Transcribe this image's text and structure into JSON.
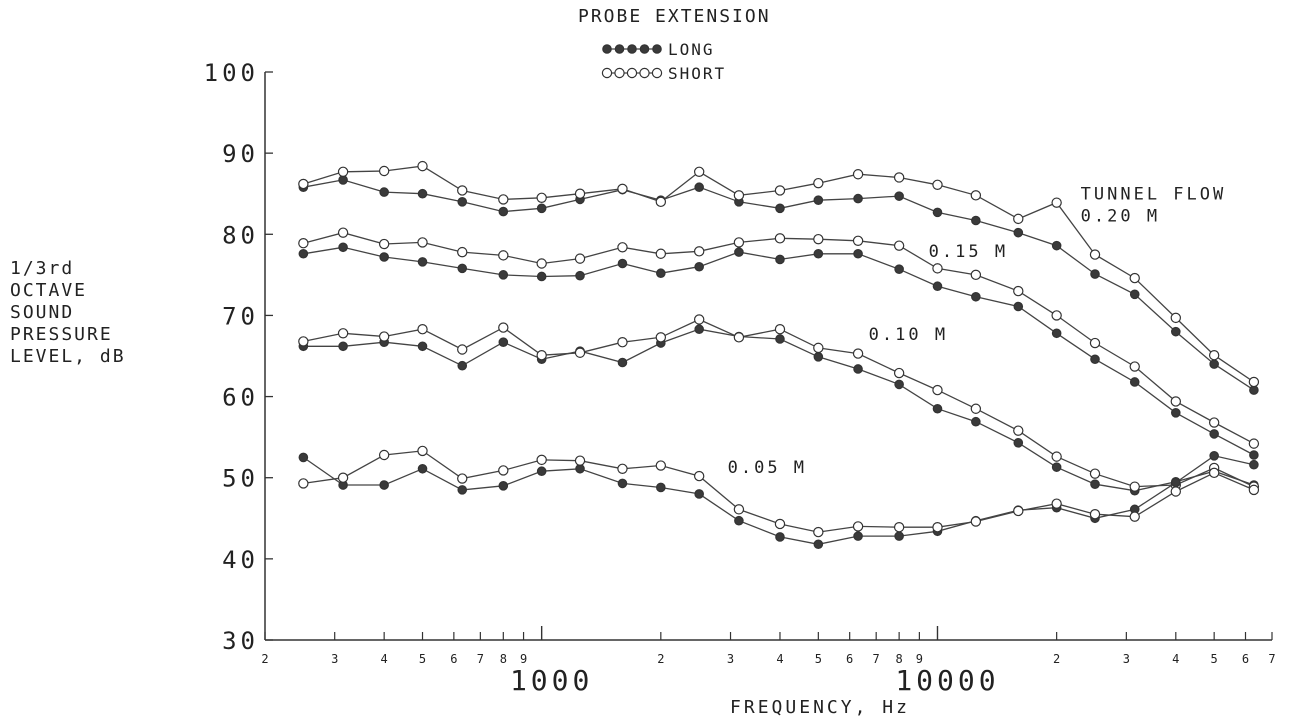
{
  "chart_data": {
    "type": "line",
    "title": "PROBE EXTENSION",
    "xlabel": "FREQUENCY, Hz",
    "ylabel_lines": [
      "1/3rd",
      "OCTAVE",
      "SOUND",
      "PRESSURE",
      "LEVEL, dB"
    ],
    "x_scale": "log",
    "xlim": [
      200,
      70000
    ],
    "ylim": [
      30,
      100
    ],
    "y_ticks": [
      30,
      40,
      50,
      60,
      70,
      80,
      90,
      100
    ],
    "x_major_ticks": [
      {
        "value": 1000,
        "label": "1000"
      },
      {
        "value": 10000,
        "label": "10000"
      }
    ],
    "x_minor_ticks": [
      {
        "value": 200,
        "label": "2"
      },
      {
        "value": 300,
        "label": "3"
      },
      {
        "value": 400,
        "label": "4"
      },
      {
        "value": 500,
        "label": "5"
      },
      {
        "value": 600,
        "label": "6"
      },
      {
        "value": 700,
        "label": "7"
      },
      {
        "value": 800,
        "label": "8"
      },
      {
        "value": 900,
        "label": "9"
      },
      {
        "value": 2000,
        "label": "2"
      },
      {
        "value": 3000,
        "label": "3"
      },
      {
        "value": 4000,
        "label": "4"
      },
      {
        "value": 5000,
        "label": "5"
      },
      {
        "value": 6000,
        "label": "6"
      },
      {
        "value": 7000,
        "label": "7"
      },
      {
        "value": 8000,
        "label": "8"
      },
      {
        "value": 9000,
        "label": "9"
      },
      {
        "value": 20000,
        "label": "2"
      },
      {
        "value": 30000,
        "label": "3"
      },
      {
        "value": 40000,
        "label": "4"
      },
      {
        "value": 50000,
        "label": "5"
      },
      {
        "value": 60000,
        "label": "6"
      },
      {
        "value": 70000,
        "label": "7"
      }
    ],
    "x": [
      250,
      315,
      400,
      500,
      630,
      800,
      1000,
      1250,
      1600,
      2000,
      2500,
      3150,
      4000,
      5000,
      6300,
      8000,
      10000,
      12500,
      16000,
      20000,
      25000,
      31500,
      40000,
      50000,
      63000
    ],
    "legend": {
      "title": "PROBE EXTENSION",
      "placement": "top-center",
      "entries": [
        {
          "label": "LONG",
          "marker": "filled"
        },
        {
          "label": "SHORT",
          "marker": "open"
        }
      ]
    },
    "grid": false,
    "annotations": [
      {
        "text": "TUNNEL FLOW",
        "x": 23000,
        "y": 84.3
      },
      {
        "text": "0.20 M",
        "x": 23000,
        "y": 81.6
      },
      {
        "text": "0.15 M",
        "x": 9500,
        "y": 77.2
      },
      {
        "text": "0.10 M",
        "x": 6700,
        "y": 67.0
      },
      {
        "text": "0.05 M",
        "x": 2950,
        "y": 50.6
      }
    ],
    "groups": [
      {
        "flow": "0.20 M",
        "series": [
          {
            "name": "LONG",
            "marker": "filled",
            "values": [
              85.8,
              86.7,
              85.2,
              85.0,
              84.0,
              82.8,
              83.2,
              84.3,
              85.5,
              84.2,
              85.8,
              84.0,
              83.2,
              84.2,
              84.4,
              84.7,
              82.7,
              81.7,
              80.2,
              78.6,
              75.1,
              72.6,
              68.0,
              64.0,
              60.8
            ]
          },
          {
            "name": "SHORT",
            "marker": "open",
            "values": [
              86.2,
              87.7,
              87.8,
              88.4,
              85.4,
              84.3,
              84.5,
              85.0,
              85.6,
              84.0,
              87.7,
              84.8,
              85.4,
              86.3,
              87.4,
              87.0,
              86.1,
              84.8,
              81.9,
              83.9,
              77.5,
              74.6,
              69.7,
              65.1,
              61.8
            ]
          }
        ]
      },
      {
        "flow": "0.15 M",
        "series": [
          {
            "name": "LONG",
            "marker": "filled",
            "values": [
              77.6,
              78.4,
              77.2,
              76.6,
              75.8,
              75.0,
              74.8,
              74.9,
              76.4,
              75.2,
              76.0,
              77.8,
              76.9,
              77.6,
              77.6,
              75.7,
              73.6,
              72.3,
              71.1,
              67.8,
              64.6,
              61.8,
              58.0,
              55.4,
              52.8
            ]
          },
          {
            "name": "SHORT",
            "marker": "open",
            "values": [
              78.9,
              80.2,
              78.8,
              79.0,
              77.8,
              77.4,
              76.4,
              77.0,
              78.4,
              77.6,
              77.9,
              79.0,
              79.5,
              79.4,
              79.2,
              78.6,
              75.8,
              75.0,
              73.0,
              70.0,
              66.6,
              63.7,
              59.4,
              56.8,
              54.2
            ]
          }
        ]
      },
      {
        "flow": "0.10 M",
        "series": [
          {
            "name": "LONG",
            "marker": "filled",
            "values": [
              66.2,
              66.2,
              66.7,
              66.2,
              63.8,
              66.7,
              64.6,
              65.6,
              64.2,
              66.6,
              68.3,
              67.4,
              67.1,
              64.9,
              63.4,
              61.5,
              58.5,
              56.9,
              54.3,
              51.3,
              49.2,
              48.4,
              49.5,
              50.8,
              49.1
            ]
          },
          {
            "name": "SHORT",
            "marker": "open",
            "values": [
              66.8,
              67.8,
              67.4,
              68.3,
              65.8,
              68.5,
              65.1,
              65.4,
              66.7,
              67.3,
              69.5,
              67.3,
              68.3,
              66.0,
              65.3,
              62.9,
              60.8,
              58.5,
              55.8,
              52.6,
              50.5,
              48.9,
              49.1,
              51.2,
              48.9
            ]
          }
        ]
      },
      {
        "flow": "0.05 M",
        "series": [
          {
            "name": "LONG",
            "marker": "filled",
            "values": [
              52.5,
              49.1,
              49.1,
              51.1,
              48.5,
              49.0,
              50.8,
              51.1,
              49.3,
              48.8,
              48.0,
              44.7,
              42.7,
              41.8,
              42.8,
              42.8,
              43.4,
              44.7,
              46.0,
              46.3,
              45.0,
              46.1,
              49.4,
              52.7,
              51.6
            ]
          },
          {
            "name": "SHORT",
            "marker": "open",
            "values": [
              49.3,
              50.0,
              52.8,
              53.3,
              49.9,
              50.9,
              52.2,
              52.1,
              51.1,
              51.5,
              50.2,
              46.1,
              44.3,
              43.3,
              44.0,
              43.9,
              43.9,
              44.6,
              45.9,
              46.8,
              45.5,
              45.2,
              48.3,
              50.6,
              48.5
            ]
          }
        ]
      }
    ]
  }
}
